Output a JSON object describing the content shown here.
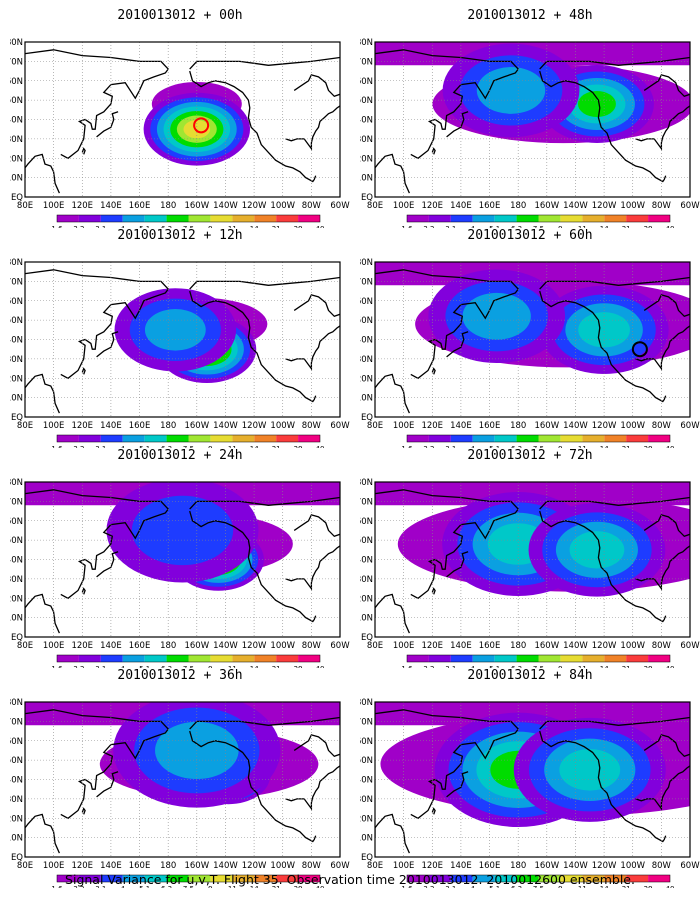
{
  "figure": {
    "caption": "Signal Variance for u,v,T. Flight 35. Observation time 2010013012. 2010012600 ensemble."
  },
  "colorbar": {
    "levels": [
      "1.6",
      "2.2",
      "3.1",
      "4",
      "5.1",
      "6.3",
      "7.5",
      "9",
      "11",
      "14",
      "21",
      "29",
      "40"
    ],
    "colors": [
      "#a000c8",
      "#8200dc",
      "#1e3cff",
      "#0aa0e1",
      "#00c8c8",
      "#00dc00",
      "#a0e632",
      "#e6dc32",
      "#e6af2d",
      "#f08228",
      "#fa3c3c",
      "#f00082"
    ]
  },
  "axes": {
    "x_ticks": [
      "80E",
      "100E",
      "120E",
      "140E",
      "160E",
      "180",
      "160W",
      "140W",
      "120W",
      "100W",
      "80W",
      "60W"
    ],
    "y_ticks": [
      "EQ",
      "10N",
      "20N",
      "30N",
      "40N",
      "50N",
      "60N",
      "70N",
      "80N"
    ]
  },
  "chart_data": [
    {
      "type": "heatmap",
      "title": "2010013012 + 00h",
      "forecast_hour": 0,
      "blobs": [
        {
          "lon": 205,
          "lat": 40,
          "level": 11,
          "spread": 1.0
        },
        {
          "lon": 200,
          "lat": 35,
          "level": 7,
          "spread": 1.4
        }
      ],
      "marker": {
        "lon": 203,
        "lat": 37,
        "shape": "circle",
        "color": "#ff0000"
      }
    },
    {
      "type": "heatmap",
      "title": "2010013012 + 12h",
      "forecast_hour": 12,
      "blobs": [
        {
          "lon": 207,
          "lat": 35,
          "level": 7,
          "spread": 1.3
        },
        {
          "lon": 185,
          "lat": 45,
          "level": 3,
          "spread": 1.6
        }
      ]
    },
    {
      "type": "heatmap",
      "title": "2010013012 + 24h",
      "forecast_hour": 24,
      "blobs": [
        {
          "lon": 215,
          "lat": 40,
          "level": 7,
          "spread": 1.2
        },
        {
          "lon": 190,
          "lat": 55,
          "level": 2,
          "spread": 2.0
        }
      ]
    },
    {
      "type": "heatmap",
      "title": "2010013012 + 36h",
      "forecast_hour": 36,
      "blobs": [
        {
          "lon": 222,
          "lat": 42,
          "level": 7,
          "spread": 1.1
        },
        {
          "lon": 200,
          "lat": 55,
          "level": 3,
          "spread": 2.2
        }
      ]
    },
    {
      "type": "heatmap",
      "title": "2010013012 + 48h",
      "forecast_hour": 48,
      "blobs": [
        {
          "lon": 235,
          "lat": 48,
          "level": 5,
          "spread": 1.5
        },
        {
          "lon": 175,
          "lat": 55,
          "level": 3,
          "spread": 1.8
        }
      ]
    },
    {
      "type": "heatmap",
      "title": "2010013012 + 60h",
      "forecast_hour": 60,
      "blobs": [
        {
          "lon": 240,
          "lat": 45,
          "level": 4,
          "spread": 1.7
        },
        {
          "lon": 165,
          "lat": 52,
          "level": 3,
          "spread": 1.8
        }
      ],
      "marker": {
        "lon": 265,
        "lat": 35,
        "shape": "circle",
        "color": "#000000"
      }
    },
    {
      "type": "heatmap",
      "title": "2010013012 + 72h",
      "forecast_hour": 72,
      "blobs": [
        {
          "lon": 180,
          "lat": 48,
          "level": 4,
          "spread": 2.0
        },
        {
          "lon": 235,
          "lat": 45,
          "level": 4,
          "spread": 1.8
        }
      ]
    },
    {
      "type": "heatmap",
      "title": "2010013012 + 84h",
      "forecast_hour": 84,
      "blobs": [
        {
          "lon": 180,
          "lat": 45,
          "level": 5,
          "spread": 2.2
        },
        {
          "lon": 230,
          "lat": 45,
          "level": 4,
          "spread": 2.0
        }
      ]
    }
  ]
}
